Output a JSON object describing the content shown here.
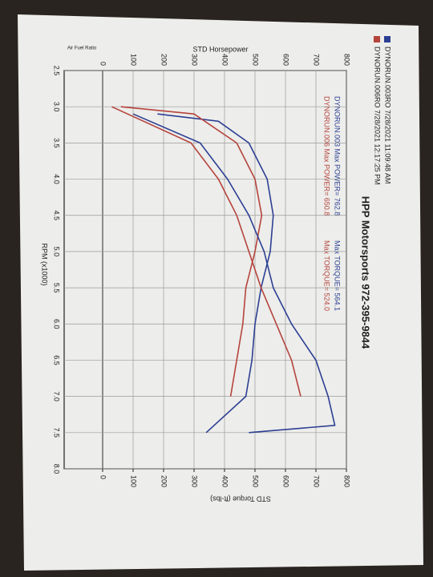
{
  "chart_data": {
    "type": "line",
    "title": "HPP Motorsports  972-395-9844",
    "x_label": "RPM (x1000)",
    "y_label": "STD Horsepower",
    "y2_label": "STD Torque (ft-lbs)",
    "subplot_label": "Air Fuel Ratio",
    "annotations": [
      {
        "text": "DYNORUN.003  Max POWER= 762.8",
        "color": "#2c3f93"
      },
      {
        "text": "Max TORQUE= 564.1",
        "color": "#2c3f93"
      },
      {
        "text": "DYNORUN.006  Max POWER= 650.8",
        "color": "#b5443c"
      },
      {
        "text": "Max TORQUE= 524.0",
        "color": "#b5443c"
      }
    ],
    "legend": [
      {
        "name": "DYNORUN.003RO  7/28/2021 11:09:48 AM",
        "color": "#2c3f93"
      },
      {
        "name": "DYNORUN.006RO  7/28/2021 12:17:25 PM",
        "color": "#b5443c"
      }
    ],
    "xlim": [
      2.5,
      8.0
    ],
    "xticks": [
      2.5,
      {
        "value": 3,
        "label": "3.0"
      },
      3.5,
      {
        "value": 4,
        "label": "4.0"
      },
      4.5,
      {
        "value": 5,
        "label": "5.0"
      },
      5.5,
      {
        "value": 6,
        "label": "6.0"
      },
      6.5,
      {
        "value": 7,
        "label": "7.0"
      },
      7.5,
      {
        "value": 8,
        "label": "8.0"
      }
    ],
    "ylim": [
      0,
      800
    ],
    "yticks": [
      0,
      100,
      200,
      300,
      400,
      500,
      600,
      700,
      800
    ],
    "y2lim": [
      0,
      800
    ],
    "y2ticks": [
      0,
      100,
      200,
      300,
      400,
      500,
      600,
      700,
      800
    ],
    "grid": true,
    "series": [
      {
        "color": "#2c3f93",
        "x": [
          3.1,
          3.2,
          3.5,
          4.0,
          4.5,
          5.0,
          5.5,
          6.0,
          6.5,
          7.0,
          7.5
        ],
        "values": [
          180,
          380,
          480,
          540,
          560,
          550,
          520,
          500,
          490,
          470,
          340
        ],
        "axis": "y2"
      },
      {
        "color": "#b5443c",
        "x": [
          3.0,
          3.1,
          3.5,
          4.0,
          4.5,
          5.0,
          5.5,
          6.0,
          6.5,
          7.0
        ],
        "values": [
          60,
          300,
          440,
          500,
          522,
          500,
          470,
          460,
          440,
          420
        ],
        "axis": "y2"
      },
      {
        "color": "#2c3f93",
        "x": [
          3.1,
          3.5,
          4.0,
          4.5,
          5.0,
          5.5,
          6.0,
          6.5,
          7.0,
          7.4,
          7.5
        ],
        "values": [
          100,
          320,
          410,
          480,
          530,
          560,
          620,
          700,
          740,
          762,
          480
        ]
      },
      {
        "color": "#b5443c",
        "x": [
          3.0,
          3.5,
          4.0,
          4.5,
          5.0,
          5.5,
          6.0,
          6.5,
          7.0
        ],
        "values": [
          30,
          290,
          380,
          440,
          480,
          520,
          570,
          620,
          650
        ]
      }
    ]
  }
}
